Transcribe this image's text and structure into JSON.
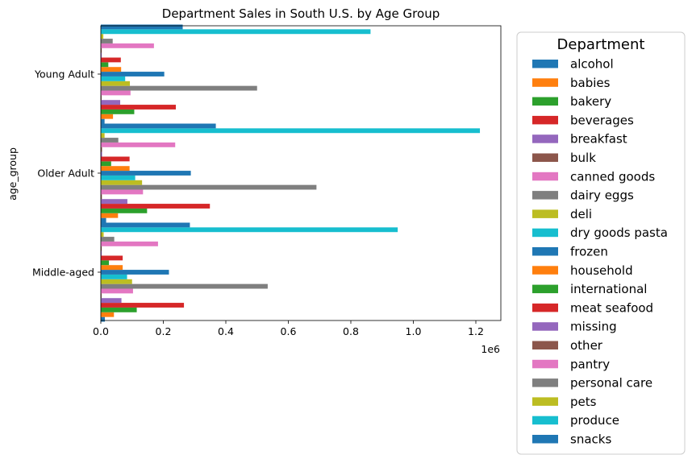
{
  "chart_data": {
    "type": "bar",
    "orientation": "horizontal",
    "title": "Department Sales in South U.S. by Age Group",
    "xlabel": "",
    "ylabel": "age_group",
    "x_offset_label": "1e6",
    "xlim": [
      0,
      1280000
    ],
    "x_ticks": [
      0,
      200000,
      400000,
      600000,
      800000,
      1000000,
      1200000
    ],
    "x_tick_labels": [
      "0.0",
      "0.2",
      "0.4",
      "0.6",
      "0.8",
      "1.0",
      "1.2"
    ],
    "categories": [
      "Middle-aged",
      "Older Adult",
      "Young Adult"
    ],
    "legend_title": "Department",
    "legend_position": "outside-right",
    "grid": false,
    "series": [
      {
        "name": "alcohol",
        "color": "#1f77b4",
        "values": [
          13000,
          17000,
          12000
        ]
      },
      {
        "name": "babies",
        "color": "#ff7f0e",
        "values": [
          42000,
          55000,
          39000
        ]
      },
      {
        "name": "bakery",
        "color": "#2ca02c",
        "values": [
          115000,
          148000,
          107000
        ]
      },
      {
        "name": "beverages",
        "color": "#d62728",
        "values": [
          266000,
          349000,
          240000
        ]
      },
      {
        "name": "breakfast",
        "color": "#9467bd",
        "values": [
          66000,
          85000,
          62000
        ]
      },
      {
        "name": "bulk",
        "color": "#8c564b",
        "values": [
          2500,
          3500,
          2500
        ]
      },
      {
        "name": "canned goods",
        "color": "#e377c2",
        "values": [
          103000,
          135000,
          95000
        ]
      },
      {
        "name": "dairy eggs",
        "color": "#7f7f7f",
        "values": [
          534000,
          690000,
          500000
        ]
      },
      {
        "name": "deli",
        "color": "#bcbd22",
        "values": [
          100000,
          132000,
          93000
        ]
      },
      {
        "name": "dry goods pasta",
        "color": "#17becf",
        "values": [
          84000,
          110000,
          78000
        ]
      },
      {
        "name": "frozen",
        "color": "#1f77b4",
        "values": [
          218000,
          288000,
          203000
        ]
      },
      {
        "name": "household",
        "color": "#ff7f0e",
        "values": [
          70000,
          92000,
          65000
        ]
      },
      {
        "name": "international",
        "color": "#2ca02c",
        "values": [
          26000,
          33000,
          24000
        ]
      },
      {
        "name": "meat seafood",
        "color": "#d62728",
        "values": [
          70000,
          92000,
          64000
        ]
      },
      {
        "name": "missing",
        "color": "#9467bd",
        "values": [
          3000,
          4000,
          3000
        ]
      },
      {
        "name": "other",
        "color": "#8c564b",
        "values": [
          3000,
          4000,
          3000
        ]
      },
      {
        "name": "pantry",
        "color": "#e377c2",
        "values": [
          183000,
          238000,
          170000
        ]
      },
      {
        "name": "personal care",
        "color": "#7f7f7f",
        "values": [
          43000,
          56000,
          38000
        ]
      },
      {
        "name": "pets",
        "color": "#bcbd22",
        "values": [
          9000,
          12000,
          8000
        ]
      },
      {
        "name": "produce",
        "color": "#17becf",
        "values": [
          950000,
          1213000,
          863000
        ]
      },
      {
        "name": "snacks",
        "color": "#1f77b4",
        "values": [
          285000,
          368000,
          262000
        ]
      }
    ]
  }
}
